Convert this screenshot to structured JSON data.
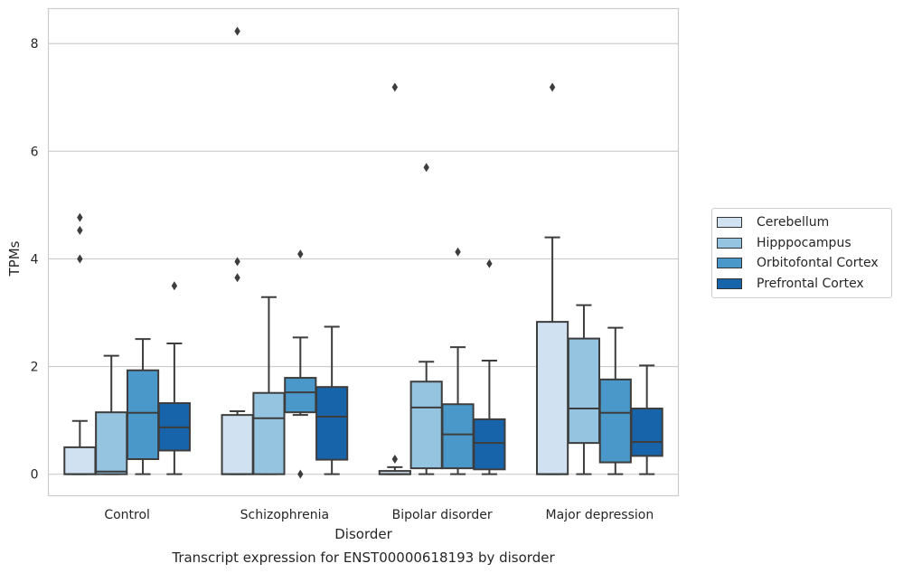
{
  "chart_data": {
    "type": "box",
    "xlabel": "Disorder",
    "ylabel": "TPMs",
    "caption": "Transcript expression for ENST00000618193 by disorder",
    "categories": [
      "Control",
      "Schizophrenia",
      "Bipolar disorder",
      "Major depression"
    ],
    "y_ticks": [
      0,
      2,
      4,
      6,
      8
    ],
    "ylim": [
      -0.4,
      8.65
    ],
    "grid": "horizontal",
    "legend_position": "right",
    "series": [
      {
        "name": "Cerebellum",
        "color": "#d0e1f2",
        "boxes": [
          {
            "whisker_low": 0,
            "q1": 0,
            "median": 0,
            "q3": 0.5,
            "whisker_high": 0.99,
            "outliers": [
              4.0,
              4.53,
              4.77
            ]
          },
          {
            "whisker_low": 0,
            "q1": 0,
            "median": 0,
            "q3": 1.1,
            "whisker_high": 1.17,
            "outliers": [
              3.65,
              3.95,
              8.23
            ]
          },
          {
            "whisker_low": 0,
            "q1": 0,
            "median": 0,
            "q3": 0.06,
            "whisker_high": 0.13,
            "outliers": [
              0.28,
              7.19
            ]
          },
          {
            "whisker_low": 0,
            "q1": 0,
            "median": 0,
            "q3": 2.83,
            "whisker_high": 4.4,
            "outliers": [
              7.19
            ]
          }
        ]
      },
      {
        "name": "Hipppocampus",
        "color": "#94c4df",
        "boxes": [
          {
            "whisker_low": 0,
            "q1": 0,
            "median": 0.05,
            "q3": 1.15,
            "whisker_high": 2.2,
            "outliers": []
          },
          {
            "whisker_low": 0,
            "q1": 0,
            "median": 1.04,
            "q3": 1.51,
            "whisker_high": 3.29,
            "outliers": []
          },
          {
            "whisker_low": 0,
            "q1": 0.11,
            "median": 1.24,
            "q3": 1.72,
            "whisker_high": 2.09,
            "outliers": [
              5.7
            ]
          },
          {
            "whisker_low": 0,
            "q1": 0.58,
            "median": 1.22,
            "q3": 2.52,
            "whisker_high": 3.14,
            "outliers": []
          }
        ]
      },
      {
        "name": "Orbitofontal Cortex",
        "color": "#4a98c9",
        "boxes": [
          {
            "whisker_low": 0,
            "q1": 0.28,
            "median": 1.14,
            "q3": 1.93,
            "whisker_high": 2.51,
            "outliers": []
          },
          {
            "whisker_low": 1.1,
            "q1": 1.15,
            "median": 1.52,
            "q3": 1.79,
            "whisker_high": 2.54,
            "outliers": [
              0.0,
              4.09
            ]
          },
          {
            "whisker_low": 0,
            "q1": 0.11,
            "median": 0.74,
            "q3": 1.3,
            "whisker_high": 2.36,
            "outliers": [
              4.13
            ]
          },
          {
            "whisker_low": 0,
            "q1": 0.22,
            "median": 1.14,
            "q3": 1.76,
            "whisker_high": 2.72,
            "outliers": []
          }
        ]
      },
      {
        "name": "Prefrontal Cortex",
        "color": "#1764ab",
        "boxes": [
          {
            "whisker_low": 0,
            "q1": 0.44,
            "median": 0.87,
            "q3": 1.32,
            "whisker_high": 2.43,
            "outliers": [
              3.5
            ]
          },
          {
            "whisker_low": 0,
            "q1": 0.27,
            "median": 1.07,
            "q3": 1.62,
            "whisker_high": 2.74,
            "outliers": []
          },
          {
            "whisker_low": 0,
            "q1": 0.09,
            "median": 0.58,
            "q3": 1.02,
            "whisker_high": 2.11,
            "outliers": [
              3.91
            ]
          },
          {
            "whisker_low": 0,
            "q1": 0.34,
            "median": 0.6,
            "q3": 1.22,
            "whisker_high": 2.02,
            "outliers": []
          }
        ]
      }
    ]
  }
}
